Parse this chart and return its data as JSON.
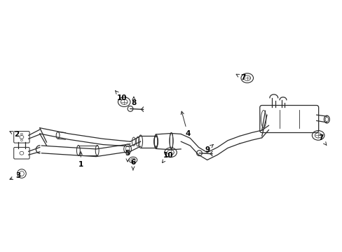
{
  "bg_color": "#ffffff",
  "line_color": "#2a2a2a",
  "fig_width": 4.89,
  "fig_height": 3.6,
  "dpi": 100,
  "xlim": [
    0,
    10
  ],
  "ylim": [
    0,
    7.35
  ]
}
